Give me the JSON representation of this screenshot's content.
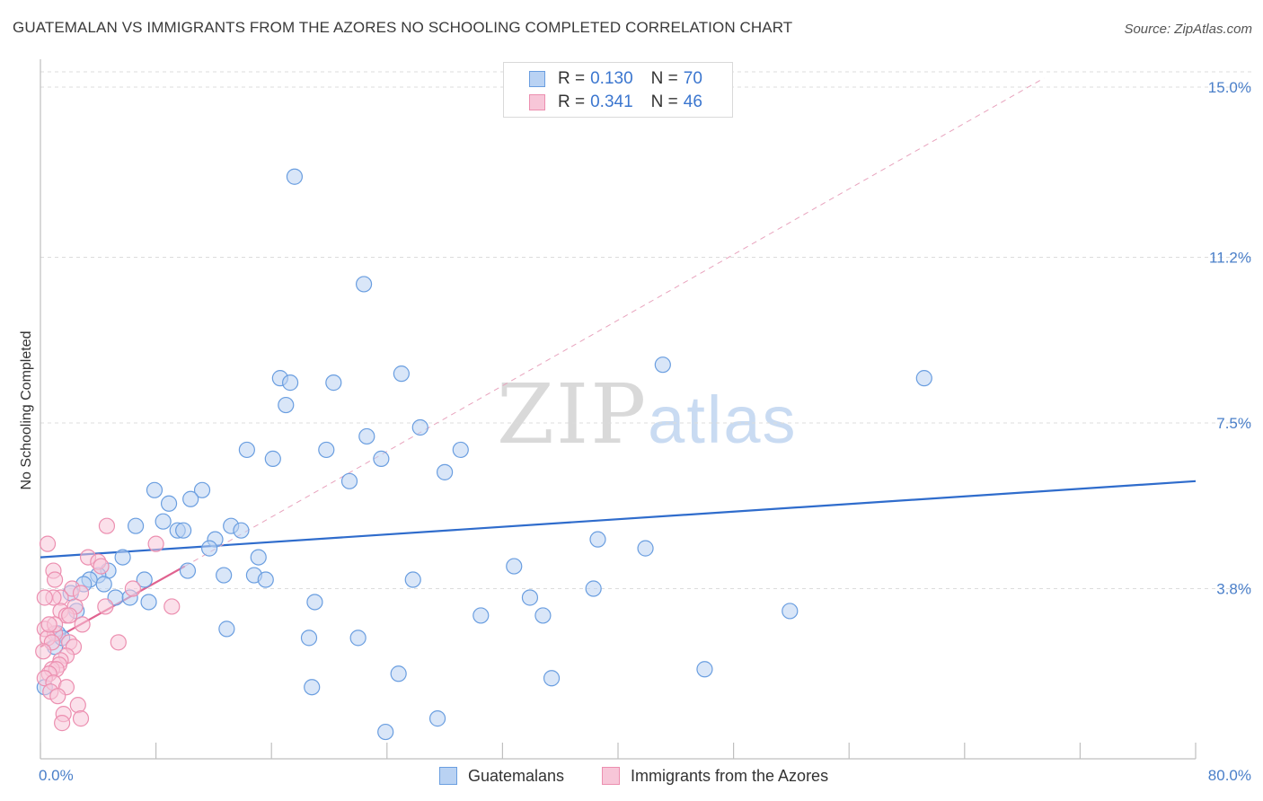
{
  "title": "GUATEMALAN VS IMMIGRANTS FROM THE AZORES NO SCHOOLING COMPLETED CORRELATION CHART",
  "source": "Source: ZipAtlas.com",
  "watermark": {
    "zip": "ZIP",
    "atlas": "atlas"
  },
  "colors": {
    "blue": "#6a9ee0",
    "blue_fill": "#b9d2f3",
    "pink": "#ec8fb0",
    "pink_fill": "#f7c6d8",
    "blue_line": "#2f6ccc",
    "pink_line": "#e0628f"
  },
  "legend": {
    "rows": [
      {
        "r_label": "R =",
        "r_value": "0.130",
        "n_label": "N =",
        "n_value": "70"
      },
      {
        "r_label": "R =",
        "r_value": "0.341",
        "n_label": "N =",
        "n_value": "46"
      }
    ]
  },
  "bottom_legend": {
    "series1": "Guatemalans",
    "series2": "Immigrants from the Azores"
  },
  "chart_data": {
    "type": "scatter",
    "title": "GUATEMALAN VS IMMIGRANTS FROM THE AZORES NO SCHOOLING COMPLETED CORRELATION CHART",
    "xlabel": "",
    "ylabel": "No Schooling Completed",
    "xlim": [
      0,
      80
    ],
    "ylim": [
      0,
      16.2
    ],
    "x_tick_labels": [
      {
        "value": 0,
        "label": "0.0%"
      },
      {
        "value": 80,
        "label": "80.0%"
      }
    ],
    "y_ticks": [
      {
        "value": 3.8,
        "label": "3.8%"
      },
      {
        "value": 7.5,
        "label": "7.5%"
      },
      {
        "value": 11.2,
        "label": "11.2%"
      },
      {
        "value": 15.0,
        "label": "15.0%"
      }
    ],
    "series": [
      {
        "name": "Guatemalans",
        "R": 0.13,
        "N": 70,
        "trend": {
          "x": [
            0,
            80
          ],
          "y": [
            4.5,
            6.2
          ],
          "style": "solid"
        },
        "points": [
          [
            17.6,
            13.0
          ],
          [
            22.4,
            10.6
          ],
          [
            25.0,
            8.6
          ],
          [
            43.1,
            8.8
          ],
          [
            61.2,
            8.5
          ],
          [
            16.6,
            8.5
          ],
          [
            17.3,
            8.4
          ],
          [
            20.3,
            8.4
          ],
          [
            17.0,
            7.9
          ],
          [
            26.3,
            7.4
          ],
          [
            22.6,
            7.2
          ],
          [
            14.3,
            6.9
          ],
          [
            19.8,
            6.9
          ],
          [
            23.6,
            6.7
          ],
          [
            16.1,
            6.7
          ],
          [
            29.1,
            6.9
          ],
          [
            28.0,
            6.4
          ],
          [
            21.4,
            6.2
          ],
          [
            7.9,
            6.0
          ],
          [
            11.2,
            6.0
          ],
          [
            8.9,
            5.7
          ],
          [
            10.4,
            5.8
          ],
          [
            6.6,
            5.2
          ],
          [
            8.5,
            5.3
          ],
          [
            9.5,
            5.1
          ],
          [
            9.9,
            5.1
          ],
          [
            13.2,
            5.2
          ],
          [
            13.9,
            5.1
          ],
          [
            12.1,
            4.9
          ],
          [
            11.7,
            4.7
          ],
          [
            38.6,
            4.9
          ],
          [
            41.9,
            4.7
          ],
          [
            15.1,
            4.5
          ],
          [
            5.7,
            4.5
          ],
          [
            10.2,
            4.2
          ],
          [
            4.7,
            4.2
          ],
          [
            4.0,
            4.1
          ],
          [
            12.7,
            4.1
          ],
          [
            14.8,
            4.1
          ],
          [
            15.6,
            4.0
          ],
          [
            7.2,
            4.0
          ],
          [
            25.8,
            4.0
          ],
          [
            32.8,
            4.3
          ],
          [
            3.4,
            4.0
          ],
          [
            3.0,
            3.9
          ],
          [
            4.4,
            3.9
          ],
          [
            2.1,
            3.7
          ],
          [
            5.2,
            3.6
          ],
          [
            6.2,
            3.6
          ],
          [
            7.5,
            3.5
          ],
          [
            38.3,
            3.8
          ],
          [
            33.9,
            3.6
          ],
          [
            19.0,
            3.5
          ],
          [
            51.9,
            3.3
          ],
          [
            30.5,
            3.2
          ],
          [
            34.8,
            3.2
          ],
          [
            12.9,
            2.9
          ],
          [
            1.2,
            2.8
          ],
          [
            1.0,
            2.5
          ],
          [
            18.6,
            2.7
          ],
          [
            22.0,
            2.7
          ],
          [
            24.8,
            1.9
          ],
          [
            35.4,
            1.8
          ],
          [
            46.0,
            2.0
          ],
          [
            18.8,
            1.6
          ],
          [
            0.3,
            1.6
          ],
          [
            27.5,
            0.9
          ],
          [
            23.9,
            0.6
          ],
          [
            2.5,
            3.3
          ],
          [
            1.5,
            2.7
          ]
        ]
      },
      {
        "name": "Immigrants from the Azores",
        "R": 0.341,
        "N": 46,
        "trend": {
          "x": [
            0,
            10.0
          ],
          "y": [
            2.5,
            4.3
          ],
          "style": "solid",
          "extension": {
            "x": [
              10.0,
              69.5
            ],
            "y": [
              4.3,
              15.2
            ],
            "style": "dashed"
          }
        },
        "points": [
          [
            4.6,
            5.2
          ],
          [
            0.5,
            4.8
          ],
          [
            8.0,
            4.8
          ],
          [
            3.3,
            4.5
          ],
          [
            4.0,
            4.4
          ],
          [
            4.2,
            4.3
          ],
          [
            0.9,
            4.2
          ],
          [
            1.0,
            4.0
          ],
          [
            6.4,
            3.8
          ],
          [
            2.2,
            3.8
          ],
          [
            2.8,
            3.7
          ],
          [
            1.4,
            3.6
          ],
          [
            0.9,
            3.6
          ],
          [
            0.3,
            3.6
          ],
          [
            2.4,
            3.4
          ],
          [
            4.5,
            3.4
          ],
          [
            9.1,
            3.4
          ],
          [
            1.4,
            3.3
          ],
          [
            1.8,
            3.2
          ],
          [
            2.0,
            3.2
          ],
          [
            0.3,
            2.9
          ],
          [
            1.0,
            2.8
          ],
          [
            0.5,
            2.7
          ],
          [
            0.8,
            2.6
          ],
          [
            2.0,
            2.6
          ],
          [
            5.4,
            2.6
          ],
          [
            2.3,
            2.5
          ],
          [
            1.8,
            2.3
          ],
          [
            1.4,
            2.2
          ],
          [
            1.3,
            2.1
          ],
          [
            0.8,
            2.0
          ],
          [
            1.1,
            2.0
          ],
          [
            0.6,
            1.9
          ],
          [
            0.3,
            1.8
          ],
          [
            0.9,
            1.7
          ],
          [
            1.8,
            1.6
          ],
          [
            0.7,
            1.5
          ],
          [
            1.2,
            1.4
          ],
          [
            2.6,
            1.2
          ],
          [
            1.6,
            1.0
          ],
          [
            2.8,
            0.9
          ],
          [
            1.5,
            0.8
          ],
          [
            1.0,
            3.0
          ],
          [
            0.2,
            2.4
          ],
          [
            2.9,
            3.0
          ],
          [
            0.6,
            3.0
          ]
        ]
      }
    ]
  }
}
